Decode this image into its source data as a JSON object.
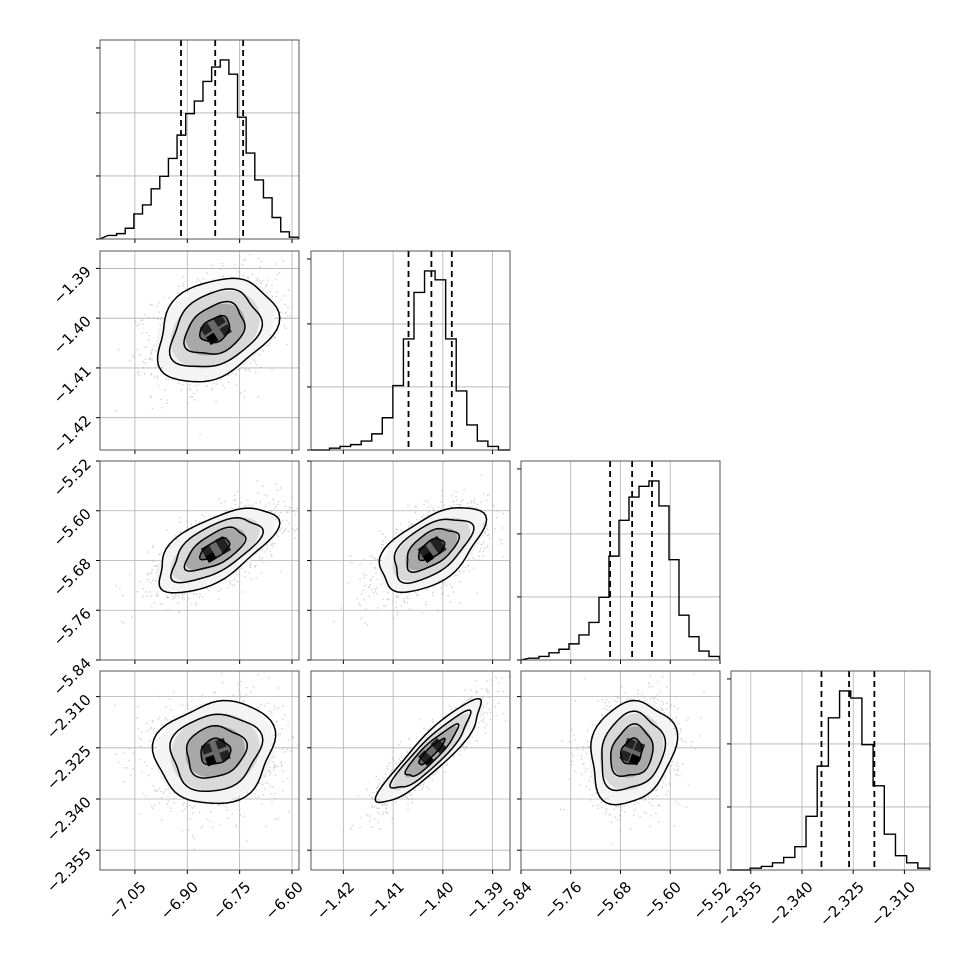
{
  "chart_data": {
    "type": "corner",
    "title": "",
    "grid": true,
    "parameters": [
      {
        "range": [
          -7.15,
          -6.58
        ],
        "ticks": [
          "−7.05",
          "−6.90",
          "−6.75",
          "−6.60"
        ],
        "tick_values": [
          -7.05,
          -6.9,
          -6.75,
          -6.6
        ],
        "quantiles": [
          -6.918,
          -6.82,
          -6.74
        ],
        "hist": [
          0.02,
          0.03,
          0.06,
          0.14,
          0.19,
          0.28,
          0.35,
          0.45,
          0.58,
          0.7,
          0.77,
          0.88,
          0.96,
          1.0,
          0.92,
          0.68,
          0.48,
          0.33,
          0.23,
          0.12,
          0.04,
          0.01
        ]
      },
      {
        "range": [
          -1.4265,
          -1.3865
        ],
        "ticks": [
          "−1.42",
          "−1.41",
          "−1.40",
          "−1.39"
        ],
        "tick_values": [
          -1.42,
          -1.41,
          -1.4,
          -1.39
        ],
        "quantiles": [
          -1.4069,
          -1.4023,
          -1.3982
        ],
        "hist": [
          0.0,
          0.01,
          0.02,
          0.03,
          0.05,
          0.09,
          0.18,
          0.36,
          0.62,
          0.88,
          1.0,
          0.95,
          0.62,
          0.33,
          0.14,
          0.05,
          0.02,
          0.0
        ]
      },
      {
        "range": [
          -5.84,
          -5.52
        ],
        "ticks": [
          "−5.84",
          "−5.76",
          "−5.68",
          "−5.60",
          "−5.52"
        ],
        "tick_values": [
          -5.84,
          -5.76,
          -5.68,
          -5.6,
          -5.52
        ],
        "quantiles": [
          -5.6967,
          -5.6613,
          -5.6293
        ],
        "hist": [
          0.01,
          0.02,
          0.04,
          0.06,
          0.09,
          0.14,
          0.21,
          0.35,
          0.58,
          0.78,
          0.91,
          0.97,
          1.0,
          0.86,
          0.56,
          0.25,
          0.13,
          0.05,
          0.02
        ]
      },
      {
        "range": [
          -2.3608,
          -2.3025
        ],
        "ticks": [
          "−2.355",
          "−2.340",
          "−2.325",
          "−2.310"
        ],
        "tick_values": [
          -2.355,
          -2.34,
          -2.325,
          -2.31
        ],
        "quantiles": [
          -2.3343,
          -2.3262,
          -2.3188
        ],
        "hist": [
          0.0,
          0.01,
          0.02,
          0.04,
          0.07,
          0.13,
          0.3,
          0.58,
          0.85,
          1.0,
          0.96,
          0.7,
          0.47,
          0.2,
          0.08,
          0.04,
          0.01
        ]
      }
    ],
    "pairs": [
      {
        "x": 0,
        "y": 1,
        "center": [
          -6.82,
          -1.4023
        ],
        "sd": [
          0.085,
          0.0052
        ],
        "rho": 0.3
      },
      {
        "x": 0,
        "y": 2,
        "center": [
          -6.82,
          -5.662
        ],
        "sd": [
          0.085,
          0.034
        ],
        "rho": 0.62
      },
      {
        "x": 1,
        "y": 2,
        "center": [
          -1.4023,
          -5.662
        ],
        "sd": [
          0.0052,
          0.034
        ],
        "rho": 0.55
      },
      {
        "x": 0,
        "y": 3,
        "center": [
          -6.82,
          -2.3262
        ],
        "sd": [
          0.085,
          0.0075
        ],
        "rho": 0.12
      },
      {
        "x": 1,
        "y": 3,
        "center": [
          -1.4023,
          -2.3262
        ],
        "sd": [
          0.0052,
          0.0075
        ],
        "rho": 0.9
      },
      {
        "x": 2,
        "y": 3,
        "center": [
          -5.662,
          -2.3262
        ],
        "sd": [
          0.034,
          0.0075
        ],
        "rho": 0.18
      }
    ],
    "contour_levels_sigma": [
      0.5,
      1.0,
      1.5,
      2.0
    ]
  }
}
